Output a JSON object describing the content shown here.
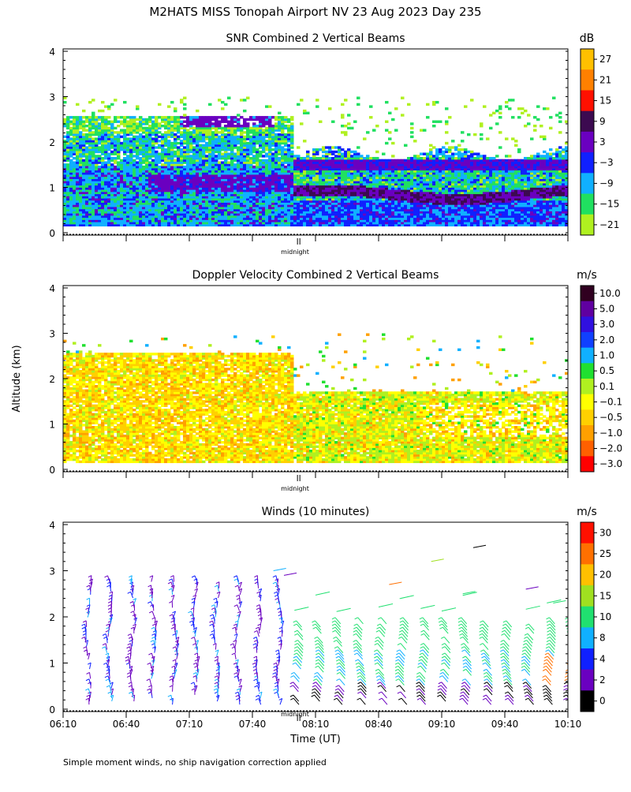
{
  "page": {
    "main_title": "M2HATS MISS Tonopah Airport NV  23 Aug 2023 Day 235",
    "y_axis_label": "Altitude (km)",
    "x_axis_label": "Time (UT)",
    "footnote": "Simple moment winds, no ship navigation correction applied",
    "midnight_label": "midnight"
  },
  "chart_data": [
    {
      "type": "heatmap",
      "title": "SNR Combined 2 Vertical Beams",
      "units": "dB",
      "ylim": [
        0,
        4
      ],
      "yticks": [
        "0",
        "1",
        "2",
        "3",
        "4"
      ],
      "colorbar_labels": [
        "27",
        "21",
        "15",
        "9",
        "3",
        "−3",
        "−9",
        "−15",
        "−21"
      ],
      "colorbar_colors": [
        "#ffc000",
        "#ff8000",
        "#ff1000",
        "#3c0a50",
        "#6a00c0",
        "#1020ff",
        "#10b0ff",
        "#20e060",
        "#b0f020"
      ]
    },
    {
      "type": "heatmap",
      "title": "Doppler Velocity Combined 2 Vertical Beams",
      "units": "m/s",
      "ylim": [
        0,
        4
      ],
      "yticks": [
        "0",
        "1",
        "2",
        "3",
        "4"
      ],
      "colorbar_labels": [
        "10.0",
        "5.0",
        "3.0",
        "2.0",
        "1.0",
        "0.5",
        "0.1",
        "−0.1",
        "−0.5",
        "−1.0",
        "−2.0",
        "−3.0"
      ],
      "colorbar_colors": [
        "#300020",
        "#6000a0",
        "#3010e0",
        "#1040ff",
        "#10b0ff",
        "#20e030",
        "#b0f020",
        "#ffff00",
        "#ffd000",
        "#ffa000",
        "#ff6000",
        "#ff0000"
      ]
    },
    {
      "type": "scatter",
      "title": "Winds (10 minutes)",
      "units": "m/s",
      "ylim": [
        0,
        4
      ],
      "yticks": [
        "0",
        "1",
        "2",
        "3",
        "4"
      ],
      "xticks": [
        "06:10",
        "06:40",
        "07:10",
        "07:40",
        "08:10",
        "08:40",
        "09:10",
        "09:40",
        "10:10"
      ],
      "colorbar_labels": [
        "30",
        "25",
        "20",
        "15",
        "10",
        "8",
        "4",
        "2",
        "0"
      ],
      "colorbar_colors": [
        "#ff1000",
        "#ff7000",
        "#ffc000",
        "#a0e020",
        "#20e070",
        "#10b0ff",
        "#1020ff",
        "#6a00c0",
        "#000000"
      ],
      "wind_profiles_time_minutes": [
        12,
        22,
        33,
        43,
        53,
        63,
        73,
        83,
        93,
        103,
        113,
        123,
        133,
        143,
        153,
        163,
        173,
        183,
        193,
        203,
        213,
        223,
        233,
        243
      ]
    }
  ]
}
